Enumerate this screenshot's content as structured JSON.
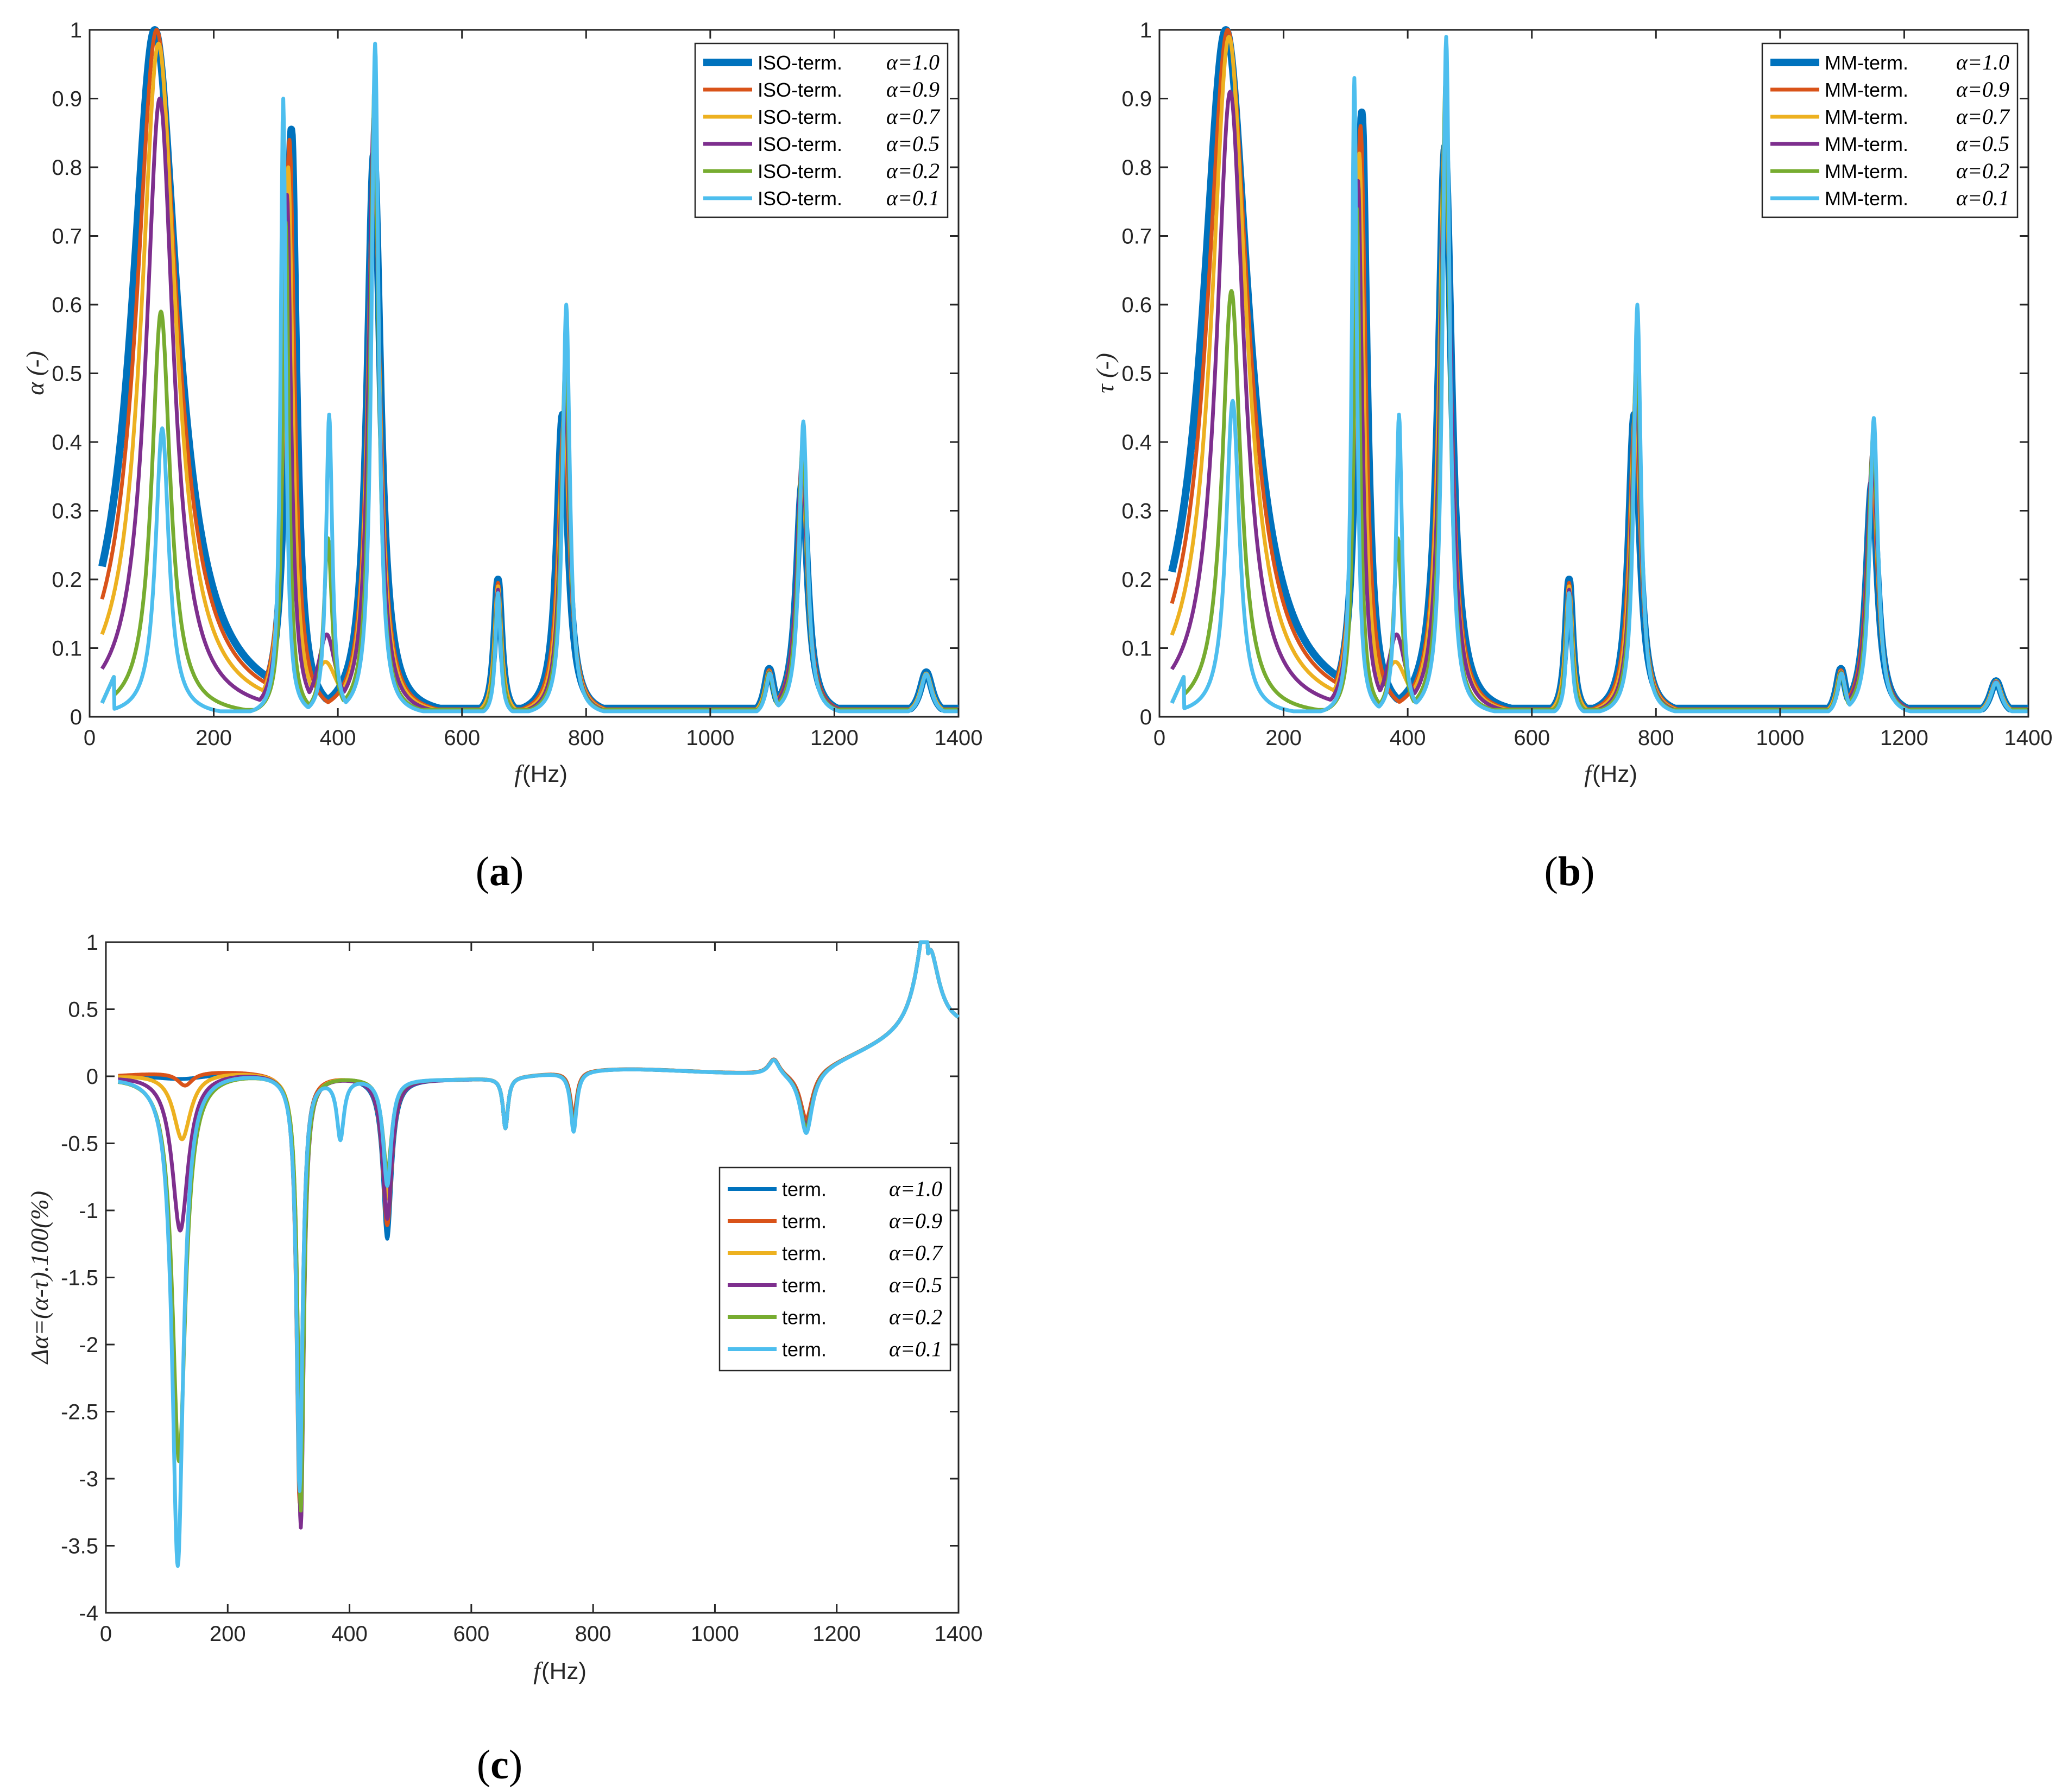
{
  "colors": [
    "#0072BD",
    "#D95319",
    "#EDB120",
    "#7E2F8E",
    "#77AC30",
    "#4DBEEE"
  ],
  "chart_data": [
    {
      "id": "a",
      "type": "line",
      "panel_label": "a",
      "xlabel_symbol": "f",
      "xlabel_unit": "(Hz)",
      "ylabel": "α (-)",
      "xlim": [
        0,
        1400
      ],
      "ylim": [
        0,
        1
      ],
      "xticks": [
        "0",
        "200",
        "400",
        "600",
        "800",
        "1000",
        "1200",
        "1400"
      ],
      "yticks": [
        "0",
        "0.1",
        "0.2",
        "0.3",
        "0.4",
        "0.5",
        "0.6",
        "0.7",
        "0.8",
        "0.9",
        "1"
      ],
      "legend_position": "top-right",
      "series": [
        {
          "name": "ISO-term.",
          "param": "α=1.0",
          "peaks": [
            [
              105,
              1.0,
              45
            ],
            [
              325,
              0.855,
              10
            ],
            [
              458,
              0.82,
              13
            ],
            [
              658,
              0.2,
              7
            ],
            [
              762,
              0.44,
              11
            ],
            [
              1095,
              0.07,
              9
            ],
            [
              1148,
              0.34,
              11
            ],
            [
              1348,
              0.065,
              12
            ]
          ],
          "base": 0.012
        },
        {
          "name": "ISO-term.",
          "param": "α=0.9",
          "peaks": [
            [
              108,
              1.0,
              40
            ],
            [
              322,
              0.84,
              10
            ],
            [
              458,
              0.82,
              12
            ],
            [
              658,
              0.195,
              7
            ],
            [
              764,
              0.43,
              11
            ],
            [
              1095,
              0.068,
              9
            ],
            [
              1148,
              0.345,
              11
            ],
            [
              1348,
              0.063,
              12
            ]
          ],
          "base": 0.011
        },
        {
          "name": "ISO-term.",
          "param": "α=0.7",
          "peaks": [
            [
              111,
              0.98,
              34
            ],
            [
              320,
              0.8,
              9
            ],
            [
              380,
              0.08,
              25
            ],
            [
              458,
              0.85,
              11
            ],
            [
              658,
              0.19,
              7
            ],
            [
              765,
              0.45,
              10
            ],
            [
              1095,
              0.066,
              9
            ],
            [
              1148,
              0.36,
              10
            ],
            [
              1348,
              0.063,
              12
            ]
          ],
          "base": 0.01
        },
        {
          "name": "ISO-term.",
          "param": "α=0.5",
          "peaks": [
            [
              113,
              0.9,
              27
            ],
            [
              318,
              0.76,
              8
            ],
            [
              382,
              0.12,
              18
            ],
            [
              458,
              0.88,
              10
            ],
            [
              658,
              0.185,
              6
            ],
            [
              766,
              0.48,
              9
            ],
            [
              1095,
              0.065,
              8
            ],
            [
              1148,
              0.38,
              10
            ],
            [
              1348,
              0.062,
              11
            ]
          ],
          "base": 0.01
        },
        {
          "name": "ISO-term.",
          "param": "α=0.2",
          "peaks": [
            [
              115,
              0.59,
              18
            ],
            [
              316,
              0.72,
              6
            ],
            [
              384,
              0.26,
              8
            ],
            [
              459,
              0.92,
              8
            ],
            [
              658,
              0.18,
              6
            ],
            [
              767,
              0.53,
              8
            ],
            [
              1095,
              0.064,
              8
            ],
            [
              1149,
              0.4,
              9
            ],
            [
              1348,
              0.062,
              11
            ]
          ],
          "base": 0.01
        },
        {
          "name": "ISO-term.",
          "param": "α=0.1",
          "peaks": [
            [
              117,
              0.42,
              13
            ],
            [
              312,
              0.9,
              5
            ],
            [
              386,
              0.44,
              6
            ],
            [
              460,
              0.98,
              7
            ],
            [
              658,
              0.18,
              5
            ],
            [
              768,
              0.6,
              7
            ],
            [
              1096,
              0.063,
              8
            ],
            [
              1150,
              0.43,
              8
            ],
            [
              1348,
              0.062,
              11
            ]
          ],
          "base": 0.008
        }
      ]
    },
    {
      "id": "b",
      "type": "line",
      "panel_label": "b",
      "xlabel_symbol": "f",
      "xlabel_unit": "(Hz)",
      "ylabel": "τ (-)",
      "xlim": [
        0,
        1400
      ],
      "ylim": [
        0,
        1
      ],
      "xticks": [
        "0",
        "200",
        "400",
        "600",
        "800",
        "1000",
        "1200",
        "1400"
      ],
      "yticks": [
        "0",
        "0.1",
        "0.2",
        "0.3",
        "0.4",
        "0.5",
        "0.6",
        "0.7",
        "0.8",
        "0.9",
        "1"
      ],
      "legend_position": "top-right",
      "series": [
        {
          "name": "MM-term.",
          "param": "α=1.0",
          "peaks": [
            [
              107,
              1.0,
              45
            ],
            [
              326,
              0.88,
              10
            ],
            [
              460,
              0.83,
              13
            ],
            [
              660,
              0.2,
              7
            ],
            [
              765,
              0.44,
              11
            ],
            [
              1098,
              0.07,
              9
            ],
            [
              1148,
              0.34,
              11
            ],
            [
              1348,
              0.052,
              12
            ]
          ],
          "base": 0.012
        },
        {
          "name": "MM-term.",
          "param": "α=0.9",
          "peaks": [
            [
              110,
              1.0,
              40
            ],
            [
              324,
              0.86,
              10
            ],
            [
              460,
              0.83,
              12
            ],
            [
              660,
              0.195,
              7
            ],
            [
              766,
              0.44,
              11
            ],
            [
              1098,
              0.068,
              9
            ],
            [
              1148,
              0.35,
              11
            ],
            [
              1348,
              0.052,
              12
            ]
          ],
          "base": 0.011
        },
        {
          "name": "MM-term.",
          "param": "α=0.7",
          "peaks": [
            [
              112,
              0.99,
              34
            ],
            [
              322,
              0.82,
              9
            ],
            [
              380,
              0.08,
              25
            ],
            [
              460,
              0.86,
              11
            ],
            [
              660,
              0.19,
              7
            ],
            [
              767,
              0.46,
              10
            ],
            [
              1098,
              0.066,
              9
            ],
            [
              1149,
              0.37,
              10
            ],
            [
              1348,
              0.052,
              12
            ]
          ],
          "base": 0.01
        },
        {
          "name": "MM-term.",
          "param": "α=0.5",
          "peaks": [
            [
              114,
              0.91,
              27
            ],
            [
              320,
              0.78,
              8
            ],
            [
              382,
              0.12,
              18
            ],
            [
              461,
              0.89,
              10
            ],
            [
              660,
              0.185,
              6
            ],
            [
              768,
              0.49,
              9
            ],
            [
              1098,
              0.065,
              8
            ],
            [
              1149,
              0.39,
              10
            ],
            [
              1348,
              0.051,
              11
            ]
          ],
          "base": 0.01
        },
        {
          "name": "MM-term.",
          "param": "α=0.2",
          "peaks": [
            [
              116,
              0.62,
              18
            ],
            [
              318,
              0.74,
              6
            ],
            [
              384,
              0.26,
              8
            ],
            [
              461,
              0.93,
              8
            ],
            [
              660,
              0.18,
              6
            ],
            [
              769,
              0.54,
              8
            ],
            [
              1098,
              0.064,
              8
            ],
            [
              1150,
              0.41,
              9
            ],
            [
              1348,
              0.05,
              11
            ]
          ],
          "base": 0.01
        },
        {
          "name": "MM-term.",
          "param": "α=0.1",
          "peaks": [
            [
              118,
              0.46,
              13
            ],
            [
              314,
              0.93,
              5
            ],
            [
              386,
              0.44,
              6
            ],
            [
              462,
              0.99,
              7
            ],
            [
              660,
              0.18,
              5
            ],
            [
              770,
              0.6,
              7
            ],
            [
              1099,
              0.063,
              8
            ],
            [
              1151,
              0.435,
              8
            ],
            [
              1348,
              0.05,
              11
            ]
          ],
          "base": 0.008
        }
      ]
    },
    {
      "id": "c",
      "type": "line",
      "panel_label": "c",
      "xlabel_symbol": "f",
      "xlabel_unit": "(Hz)",
      "ylabel": "Δα=(α-τ).100(%)",
      "xlim": [
        0,
        1400
      ],
      "ylim": [
        -4,
        1
      ],
      "xticks": [
        "0",
        "200",
        "400",
        "600",
        "800",
        "1000",
        "1200",
        "1400"
      ],
      "yticks": [
        "-4",
        "-3.5",
        "-3",
        "-2.5",
        "-2",
        "-1.5",
        "-1",
        "-0.5",
        "0",
        "0.5",
        "1"
      ],
      "legend_position": "center-right",
      "series": [
        {
          "name": "term.",
          "param": "α=1.0",
          "dips": [
            [
              125,
              -0.05,
              60
            ],
            [
              318,
              -3.1,
              6
            ],
            [
              462,
              -1.2,
              9
            ],
            [
              656,
              -0.38,
              5
            ],
            [
              768,
              -0.4,
              6
            ],
            [
              1150,
              -0.38,
              12
            ]
          ]
        },
        {
          "name": "term.",
          "param": "α=0.9",
          "dips": [
            [
              130,
              -0.1,
              15
            ],
            [
              318,
              -3.2,
              6
            ],
            [
              462,
              -1.1,
              9
            ],
            [
              656,
              -0.38,
              5
            ],
            [
              768,
              -0.35,
              6
            ],
            [
              1150,
              -0.35,
              12
            ]
          ]
        },
        {
          "name": "term.",
          "param": "α=0.7",
          "dips": [
            [
              125,
              -0.5,
              17
            ],
            [
              320,
              -3.3,
              6
            ],
            [
              462,
              -0.9,
              9
            ],
            [
              656,
              -0.38,
              5
            ],
            [
              768,
              -0.4,
              6
            ],
            [
              1150,
              -0.4,
              12
            ]
          ]
        },
        {
          "name": "term.",
          "param": "α=0.5",
          "dips": [
            [
              122,
              -1.18,
              16
            ],
            [
              320,
              -3.38,
              6
            ],
            [
              462,
              -1.05,
              9
            ],
            [
              656,
              -0.38,
              5
            ],
            [
              768,
              -0.4,
              6
            ],
            [
              1150,
              -0.4,
              12
            ]
          ]
        },
        {
          "name": "term.",
          "param": "α=0.2",
          "dips": [
            [
              120,
              -2.9,
              13
            ],
            [
              320,
              -3.25,
              6
            ],
            [
              462,
              -0.7,
              9
            ],
            [
              656,
              -0.38,
              5
            ],
            [
              768,
              -0.42,
              6
            ],
            [
              1150,
              -0.42,
              12
            ]
          ]
        },
        {
          "name": "term.",
          "param": "α=0.1",
          "dips": [
            [
              118,
              -3.68,
              11
            ],
            [
              318,
              -3.1,
              6
            ],
            [
              385,
              -0.45,
              7
            ],
            [
              462,
              -0.8,
              8
            ],
            [
              656,
              -0.38,
              5
            ],
            [
              768,
              -0.45,
              6
            ],
            [
              1150,
              -0.45,
              12
            ]
          ]
        }
      ],
      "common_features": {
        "bumps": [
          [
            1097,
            0.12,
            11
          ],
          [
            1350,
            0.92,
            20
          ]
        ]
      }
    }
  ]
}
